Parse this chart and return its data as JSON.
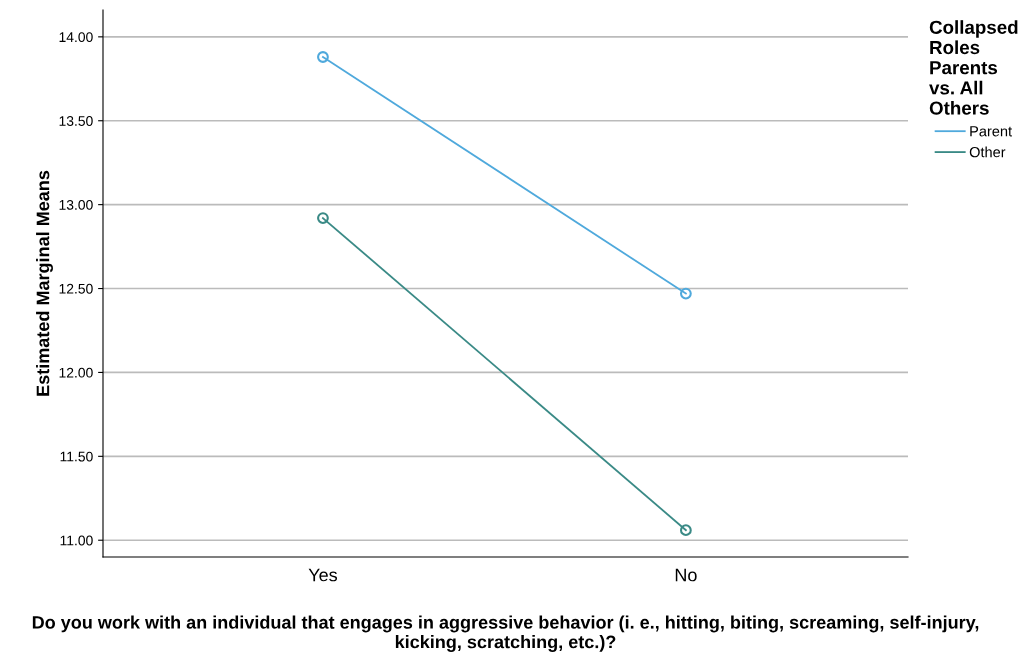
{
  "chart_data": {
    "type": "line",
    "xlabel": "Do you work with an individual that engages in aggressive behavior (i. e., hitting, biting, screaming, self-injury, kicking, scratching, etc.)?",
    "ylabel": "Estimated Marginal Means",
    "legend_title": "Collapsed Roles Parents vs. All Others",
    "categories": [
      "Yes",
      "No"
    ],
    "series": [
      {
        "name": "Parent",
        "color": "#4fa9dc",
        "values": [
          13.88,
          12.47
        ]
      },
      {
        "name": "Other",
        "color": "#3a8a86",
        "values": [
          12.92,
          11.06
        ]
      }
    ],
    "ylim": [
      10.9,
      14.16
    ],
    "yticks": [
      {
        "value": 11,
        "label": "11.00"
      },
      {
        "value": 11.5,
        "label": "11.50"
      },
      {
        "value": 12,
        "label": "12.00"
      },
      {
        "value": 12.5,
        "label": "12.50"
      },
      {
        "value": 13,
        "label": "13.00"
      },
      {
        "value": 13.5,
        "label": "13.50"
      },
      {
        "value": 14,
        "label": "14.00"
      }
    ],
    "grid": "y",
    "legend": "right",
    "marker": "circle",
    "line_style": "solid"
  }
}
